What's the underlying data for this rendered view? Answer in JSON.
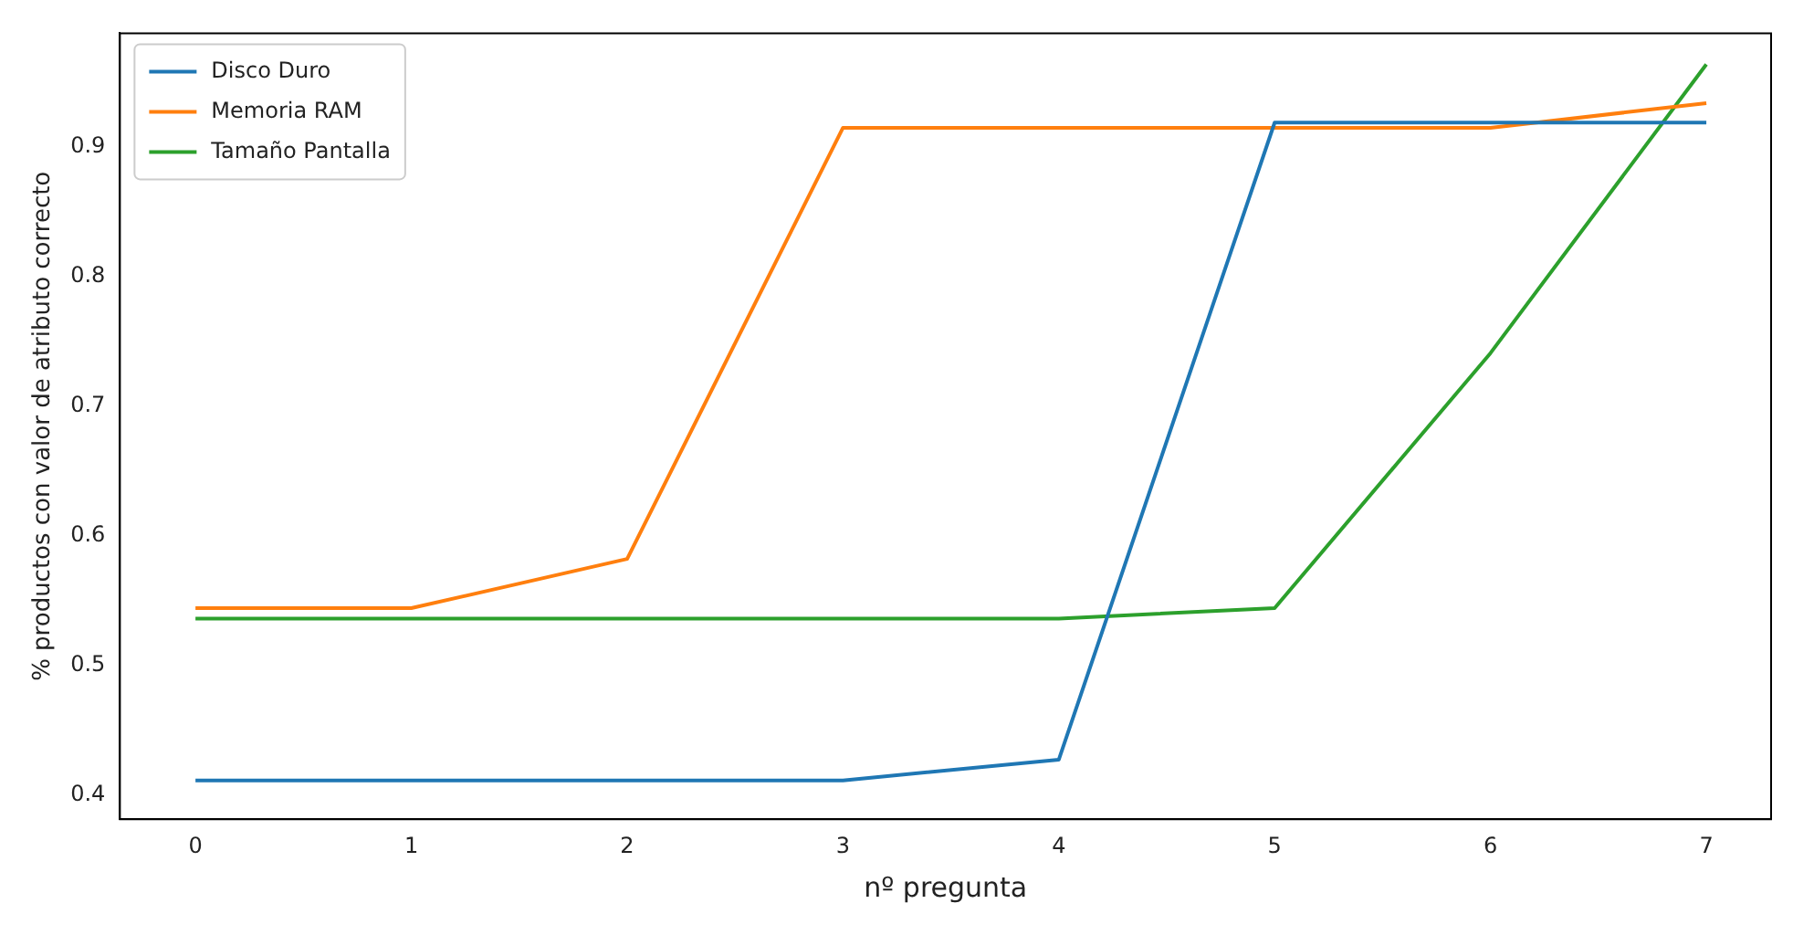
{
  "chart_data": {
    "type": "line",
    "xlabel": "nº pregunta",
    "ylabel": "% productos con valor de atributo correcto",
    "x": [
      0,
      1,
      2,
      3,
      4,
      5,
      6,
      7
    ],
    "series": [
      {
        "name": "Disco Duro",
        "color": "#1f77b4",
        "values": [
          0.411,
          0.411,
          0.411,
          0.411,
          0.427,
          0.919,
          0.919,
          0.919
        ]
      },
      {
        "name": "Memoria RAM",
        "color": "#ff7f0e",
        "values": [
          0.544,
          0.544,
          0.582,
          0.915,
          0.915,
          0.915,
          0.915,
          0.934
        ]
      },
      {
        "name": "Tamaño Pantalla",
        "color": "#2ca02c",
        "values": [
          0.536,
          0.536,
          0.536,
          0.536,
          0.536,
          0.544,
          0.741,
          0.964
        ]
      }
    ],
    "xlim": [
      -0.35,
      7.3
    ],
    "ylim": [
      0.381,
      0.988
    ],
    "xticks": [
      0,
      1,
      2,
      3,
      4,
      5,
      6,
      7
    ],
    "yticks": [
      0.4,
      0.5,
      0.6,
      0.7,
      0.8,
      0.9
    ],
    "grid": false,
    "legend": "top left",
    "marker": "none",
    "line_style": "solid"
  }
}
